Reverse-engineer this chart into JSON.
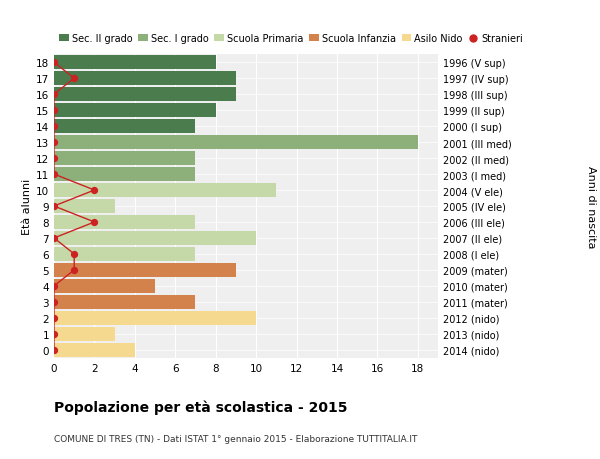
{
  "ages": [
    18,
    17,
    16,
    15,
    14,
    13,
    12,
    11,
    10,
    9,
    8,
    7,
    6,
    5,
    4,
    3,
    2,
    1,
    0
  ],
  "right_labels": [
    "1996 (V sup)",
    "1997 (IV sup)",
    "1998 (III sup)",
    "1999 (II sup)",
    "2000 (I sup)",
    "2001 (III med)",
    "2002 (II med)",
    "2003 (I med)",
    "2004 (V ele)",
    "2005 (IV ele)",
    "2006 (III ele)",
    "2007 (II ele)",
    "2008 (I ele)",
    "2009 (mater)",
    "2010 (mater)",
    "2011 (mater)",
    "2012 (nido)",
    "2013 (nido)",
    "2014 (nido)"
  ],
  "bar_values": [
    8,
    9,
    9,
    8,
    7,
    18,
    7,
    7,
    11,
    3,
    7,
    10,
    7,
    9,
    5,
    7,
    10,
    3,
    4
  ],
  "bar_colors": [
    "#4a7c4e",
    "#4a7c4e",
    "#4a7c4e",
    "#4a7c4e",
    "#4a7c4e",
    "#8db07a",
    "#8db07a",
    "#8db07a",
    "#c5d9a8",
    "#c5d9a8",
    "#c5d9a8",
    "#c5d9a8",
    "#c5d9a8",
    "#d2824a",
    "#d2824a",
    "#d2824a",
    "#f5d98e",
    "#f5d98e",
    "#f5d98e"
  ],
  "stranieri_values": [
    0,
    1,
    0,
    0,
    0,
    0,
    0,
    0,
    2,
    0,
    2,
    0,
    1,
    1,
    0,
    0,
    0,
    0,
    0
  ],
  "stranieri_color": "#cc2222",
  "legend_labels": [
    "Sec. II grado",
    "Sec. I grado",
    "Scuola Primaria",
    "Scuola Infanzia",
    "Asilo Nido",
    "Stranieri"
  ],
  "legend_colors": [
    "#4a7c4e",
    "#8db07a",
    "#c5d9a8",
    "#d2824a",
    "#f5d98e",
    "#cc2222"
  ],
  "xlabel": "Età alunni",
  "ylabel_right": "Anni di nascita",
  "title": "Popolazione per età scolastica - 2015",
  "subtitle": "COMUNE DI TRES (TN) - Dati ISTAT 1° gennaio 2015 - Elaborazione TUTTITALIA.IT",
  "xlim": [
    0,
    19
  ],
  "xticks": [
    0,
    2,
    4,
    6,
    8,
    10,
    12,
    14,
    16,
    18
  ],
  "bg_color": "#ffffff",
  "plot_bg_color": "#efefef"
}
